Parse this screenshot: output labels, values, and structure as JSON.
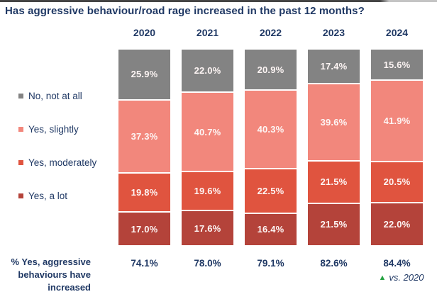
{
  "title": "Has aggressive behaviour/road rage increased in the past 12 months?",
  "colors": {
    "navy": "#1F3864",
    "green": "#27A344",
    "segment_label": "#FDF5F4",
    "gap_white": "#FFFFFF"
  },
  "icons": {
    "up_triangle": "▲",
    "legend_swatch": "■"
  },
  "chart_data": {
    "type": "bar",
    "stacked": true,
    "orientation": "vertical",
    "title": "Has aggressive behaviour/road rage increased in the past 12 months?",
    "categories": [
      "2020",
      "2021",
      "2022",
      "2023",
      "2024"
    ],
    "series": [
      {
        "name": "No, not at all",
        "color": "#838383",
        "values": [
          25.9,
          22.0,
          20.9,
          17.4,
          15.6
        ]
      },
      {
        "name": "Yes, slightly",
        "color": "#F2877C",
        "values": [
          37.3,
          40.7,
          40.3,
          39.6,
          41.9
        ]
      },
      {
        "name": "Yes, moderately",
        "color": "#E0543F",
        "values": [
          19.8,
          19.6,
          22.5,
          21.5,
          20.5
        ]
      },
      {
        "name": "Yes, a lot",
        "color": "#B4433A",
        "values": [
          17.0,
          17.6,
          16.4,
          21.5,
          22.0
        ]
      }
    ],
    "value_suffix": "%",
    "value_decimals": 1,
    "ylim": [
      0,
      100
    ],
    "legend_position": "left",
    "grid": false
  },
  "summary": {
    "label": "% Yes, aggressive behaviours have increased",
    "values": [
      "74.1%",
      "78.0%",
      "79.1%",
      "82.6%",
      "84.4%"
    ],
    "note_text": "vs. 2020"
  }
}
